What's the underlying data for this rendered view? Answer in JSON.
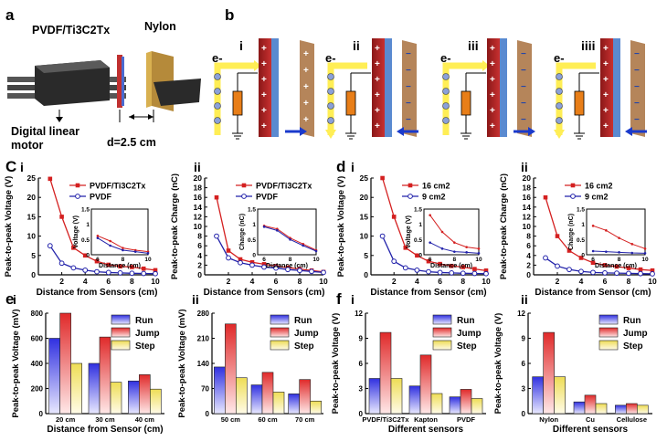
{
  "panel_labels": {
    "a": "a",
    "b": "b",
    "C": "C",
    "d": "d",
    "e": "e",
    "f": "f"
  },
  "panel_a": {
    "material_1": "PVDF/Ti3C2Tx",
    "material_2": "Nylon",
    "motor_label_1": "Digital linear",
    "motor_label_2": "motor",
    "distance_label": "d=2.5 cm"
  },
  "panel_b": {
    "steps": [
      "i",
      "ii",
      "iii",
      "iiii"
    ],
    "electron": "e-"
  },
  "colors": {
    "red": "#d42020",
    "blue": "#2222aa",
    "bar_run": "#3a3ae6",
    "bar_jump": "#e63333",
    "bar_step": "#f0e070"
  },
  "chart_data": [
    {
      "id": "Ci",
      "panel": "C",
      "sub": "i",
      "type": "line",
      "xlabel": "Distance from Sensors (cm)",
      "ylabel": "Peak-to-peak Voltage (V)",
      "xlim": [
        0,
        10
      ],
      "ylim": [
        0,
        25
      ],
      "xticks": [
        2,
        4,
        6,
        8,
        10
      ],
      "yticks": [
        0,
        5,
        10,
        15,
        20,
        25
      ],
      "series": [
        {
          "name": "PVDF/Ti3C2Tx",
          "color": "#d42020",
          "marker": "square",
          "x": [
            1,
            2,
            3,
            4,
            5,
            6,
            7,
            8,
            9,
            10
          ],
          "y": [
            24.8,
            15,
            7,
            5,
            3.5,
            2.6,
            2.2,
            2,
            1.6,
            1.2
          ]
        },
        {
          "name": "PVDF",
          "color": "#2222aa",
          "marker": "circle",
          "x": [
            1,
            2,
            3,
            4,
            5,
            6,
            7,
            8,
            9,
            10
          ],
          "y": [
            7.5,
            3,
            1.8,
            1.2,
            0.8,
            0.6,
            0.5,
            0.4,
            0.35,
            0.3
          ]
        }
      ],
      "inset": {
        "xlabel": "Distance (cm)",
        "ylabel": "Voltage (V)",
        "xlim": [
          5.5,
          10
        ],
        "ylim": [
          0,
          1.5
        ],
        "xticks": [
          6,
          8,
          10
        ],
        "yticks": [
          0,
          0.5,
          1.0,
          1.5
        ],
        "series": [
          {
            "color": "#d42020",
            "x": [
              6,
              7,
              8,
              9,
              10
            ],
            "y": [
              0.62,
              0.45,
              0.22,
              0.15,
              0.1
            ]
          },
          {
            "color": "#2222aa",
            "x": [
              6,
              7,
              8,
              9,
              10
            ],
            "y": [
              0.55,
              0.3,
              0.15,
              0.1,
              0.05
            ]
          }
        ]
      }
    },
    {
      "id": "Cii",
      "panel": "C",
      "sub": "ii",
      "type": "line",
      "xlabel": "Distance from Sensors (cm)",
      "ylabel": "Peak-to-peak Charge (nC)",
      "xlim": [
        0,
        10
      ],
      "ylim": [
        0,
        20
      ],
      "xticks": [
        2,
        4,
        6,
        8,
        10
      ],
      "yticks": [
        0,
        2,
        4,
        6,
        8,
        10,
        12,
        14,
        16,
        18,
        20
      ],
      "series": [
        {
          "name": "PVDF/Ti3C2Tx",
          "color": "#d42020",
          "marker": "square",
          "x": [
            1,
            2,
            3,
            4,
            5,
            6,
            7,
            8,
            9,
            10
          ],
          "y": [
            16,
            5,
            3.2,
            2.6,
            2.2,
            1.8,
            1.5,
            1.2,
            0.9,
            0.6
          ]
        },
        {
          "name": "PVDF",
          "color": "#2222aa",
          "marker": "circle",
          "x": [
            1,
            2,
            3,
            4,
            5,
            6,
            7,
            8,
            9,
            10
          ],
          "y": [
            8,
            3.5,
            2.5,
            2,
            1.6,
            1.4,
            1.1,
            0.9,
            0.7,
            0.5
          ]
        }
      ],
      "inset": {
        "xlabel": "Distance (cm)",
        "ylabel": "Charge (nC)",
        "xlim": [
          5.5,
          10
        ],
        "ylim": [
          0,
          1.5
        ],
        "xticks": [
          6,
          8,
          10
        ],
        "yticks": [
          0,
          0.5,
          1.0,
          1.5
        ],
        "series": [
          {
            "color": "#d42020",
            "x": [
              6,
              7,
              8,
              9,
              10
            ],
            "y": [
              0.95,
              0.85,
              0.55,
              0.35,
              0.15
            ]
          },
          {
            "color": "#2222aa",
            "x": [
              6,
              7,
              8,
              9,
              10
            ],
            "y": [
              0.92,
              0.8,
              0.5,
              0.3,
              0.12
            ]
          }
        ]
      }
    },
    {
      "id": "di",
      "panel": "d",
      "sub": "i",
      "type": "line",
      "xlabel": "Distance from Sensor (cm)",
      "ylabel": "Peak-to-peak Voltage (V)",
      "xlim": [
        0,
        10
      ],
      "ylim": [
        0,
        25
      ],
      "xticks": [
        2,
        4,
        6,
        8,
        10
      ],
      "yticks": [
        0,
        5,
        10,
        15,
        20,
        25
      ],
      "series": [
        {
          "name": "16 cm2",
          "color": "#d42020",
          "marker": "square",
          "x": [
            1,
            2,
            3,
            4,
            5,
            6,
            7,
            8,
            9,
            10
          ],
          "y": [
            25,
            15,
            7,
            5,
            3.5,
            2.8,
            2.3,
            2,
            1.5,
            1.1
          ]
        },
        {
          "name": "9 cm2",
          "color": "#2222aa",
          "marker": "circle",
          "x": [
            1,
            2,
            3,
            4,
            5,
            6,
            7,
            8,
            9,
            10
          ],
          "y": [
            10,
            3.5,
            1.8,
            1.2,
            0.8,
            0.6,
            0.5,
            0.4,
            0.35,
            0.3
          ]
        }
      ],
      "inset": {
        "xlabel": "Distance (cm)",
        "ylabel": "Voltage (V)",
        "xlim": [
          5.5,
          10
        ],
        "ylim": [
          0,
          1.5
        ],
        "xticks": [
          6,
          8,
          10
        ],
        "yticks": [
          0,
          0.5,
          1.0,
          1.5
        ],
        "series": [
          {
            "color": "#d42020",
            "x": [
              6,
              7,
              8,
              9,
              10
            ],
            "y": [
              1.3,
              0.75,
              0.4,
              0.25,
              0.2
            ]
          },
          {
            "color": "#2222aa",
            "x": [
              6,
              7,
              8,
              9,
              10
            ],
            "y": [
              0.4,
              0.2,
              0.1,
              0.08,
              0.05
            ]
          }
        ]
      }
    },
    {
      "id": "dii",
      "panel": "d",
      "sub": "ii",
      "type": "line",
      "xlabel": "Distance from Sensor (cm)",
      "ylabel": "Peak-to-peak Charge (nC)",
      "xlim": [
        0,
        10
      ],
      "ylim": [
        0,
        20
      ],
      "xticks": [
        2,
        4,
        6,
        8,
        10
      ],
      "yticks": [
        0,
        2,
        4,
        6,
        8,
        10,
        12,
        14,
        16,
        18,
        20
      ],
      "series": [
        {
          "name": "16 cm2",
          "color": "#d42020",
          "marker": "square",
          "x": [
            1,
            2,
            3,
            4,
            5,
            6,
            7,
            8,
            9,
            10
          ],
          "y": [
            16,
            8,
            5,
            3.5,
            2.5,
            2,
            1.7,
            1.4,
            1.1,
            0.9
          ]
        },
        {
          "name": "9 cm2",
          "color": "#2222aa",
          "marker": "circle",
          "x": [
            1,
            2,
            3,
            4,
            5,
            6,
            7,
            8,
            9,
            10
          ],
          "y": [
            3.5,
            1.8,
            1.1,
            0.7,
            0.5,
            0.4,
            0.35,
            0.3,
            0.25,
            0.2
          ]
        }
      ],
      "inset": {
        "xlabel": "Distance (cm)",
        "ylabel": "Charge (nC)",
        "xlim": [
          5.5,
          10
        ],
        "ylim": [
          0,
          1.5
        ],
        "xticks": [
          6,
          8,
          10
        ],
        "yticks": [
          0,
          0.5,
          1.0,
          1.5
        ],
        "series": [
          {
            "color": "#d42020",
            "x": [
              6,
              7,
              8,
              9,
              10
            ],
            "y": [
              0.95,
              0.8,
              0.55,
              0.35,
              0.2
            ]
          },
          {
            "color": "#2222aa",
            "x": [
              6,
              7,
              8,
              9,
              10
            ],
            "y": [
              0.12,
              0.1,
              0.08,
              0.06,
              0.05
            ]
          }
        ]
      }
    },
    {
      "id": "ei",
      "panel": "e",
      "sub": "i",
      "type": "bar",
      "xlabel": "Distance from Sensor (cm)",
      "ylabel": "Peak-to-peak Voltage (mV)",
      "ylim": [
        0,
        800
      ],
      "yticks": [
        0,
        200,
        400,
        600,
        800
      ],
      "categories": [
        "20 cm",
        "30 cm",
        "40 cm"
      ],
      "series": [
        {
          "name": "Run",
          "values": [
            600,
            400,
            260
          ]
        },
        {
          "name": "Jump",
          "values": [
            800,
            610,
            310
          ]
        },
        {
          "name": "Step",
          "values": [
            400,
            250,
            195
          ]
        }
      ]
    },
    {
      "id": "eii",
      "panel": "e",
      "sub": "ii",
      "type": "bar",
      "xlabel": "",
      "ylabel": "Peak-to-peak Voltage (mV)",
      "ylim": [
        0,
        280
      ],
      "yticks": [
        0,
        70,
        140,
        210,
        280
      ],
      "categories": [
        "50 cm",
        "60 cm",
        "70 cm"
      ],
      "series": [
        {
          "name": "Run",
          "values": [
            130,
            80,
            55
          ]
        },
        {
          "name": "Jump",
          "values": [
            250,
            115,
            95
          ]
        },
        {
          "name": "Step",
          "values": [
            100,
            60,
            35
          ]
        }
      ]
    },
    {
      "id": "fi",
      "panel": "f",
      "sub": "i",
      "type": "bar",
      "xlabel": "Different sensors",
      "ylabel": "Peak-to-peak Voltage (V)",
      "ylim": [
        0,
        12
      ],
      "yticks": [
        0,
        3,
        6,
        9,
        12
      ],
      "categories": [
        "PVDF/Ti3C2Tx",
        "Kapton",
        "PVDF"
      ],
      "series": [
        {
          "name": "Run",
          "values": [
            4.2,
            3.3,
            2
          ]
        },
        {
          "name": "Jump",
          "values": [
            9.7,
            7,
            2.9
          ]
        },
        {
          "name": "Step",
          "values": [
            4.2,
            2.4,
            1.8
          ]
        }
      ]
    },
    {
      "id": "fii",
      "panel": "f",
      "sub": "ii",
      "type": "bar",
      "xlabel": "Different sensors",
      "ylabel": "Peak-to-peak Voltage (V)",
      "ylim": [
        0,
        12
      ],
      "yticks": [
        0,
        3,
        6,
        9,
        12
      ],
      "categories": [
        "Nylon",
        "Cu",
        "Cellulose"
      ],
      "series": [
        {
          "name": "Run",
          "values": [
            4.4,
            1.4,
            1
          ]
        },
        {
          "name": "Jump",
          "values": [
            9.7,
            2.2,
            1.2
          ]
        },
        {
          "name": "Step",
          "values": [
            4.4,
            1.2,
            1
          ]
        }
      ]
    }
  ]
}
